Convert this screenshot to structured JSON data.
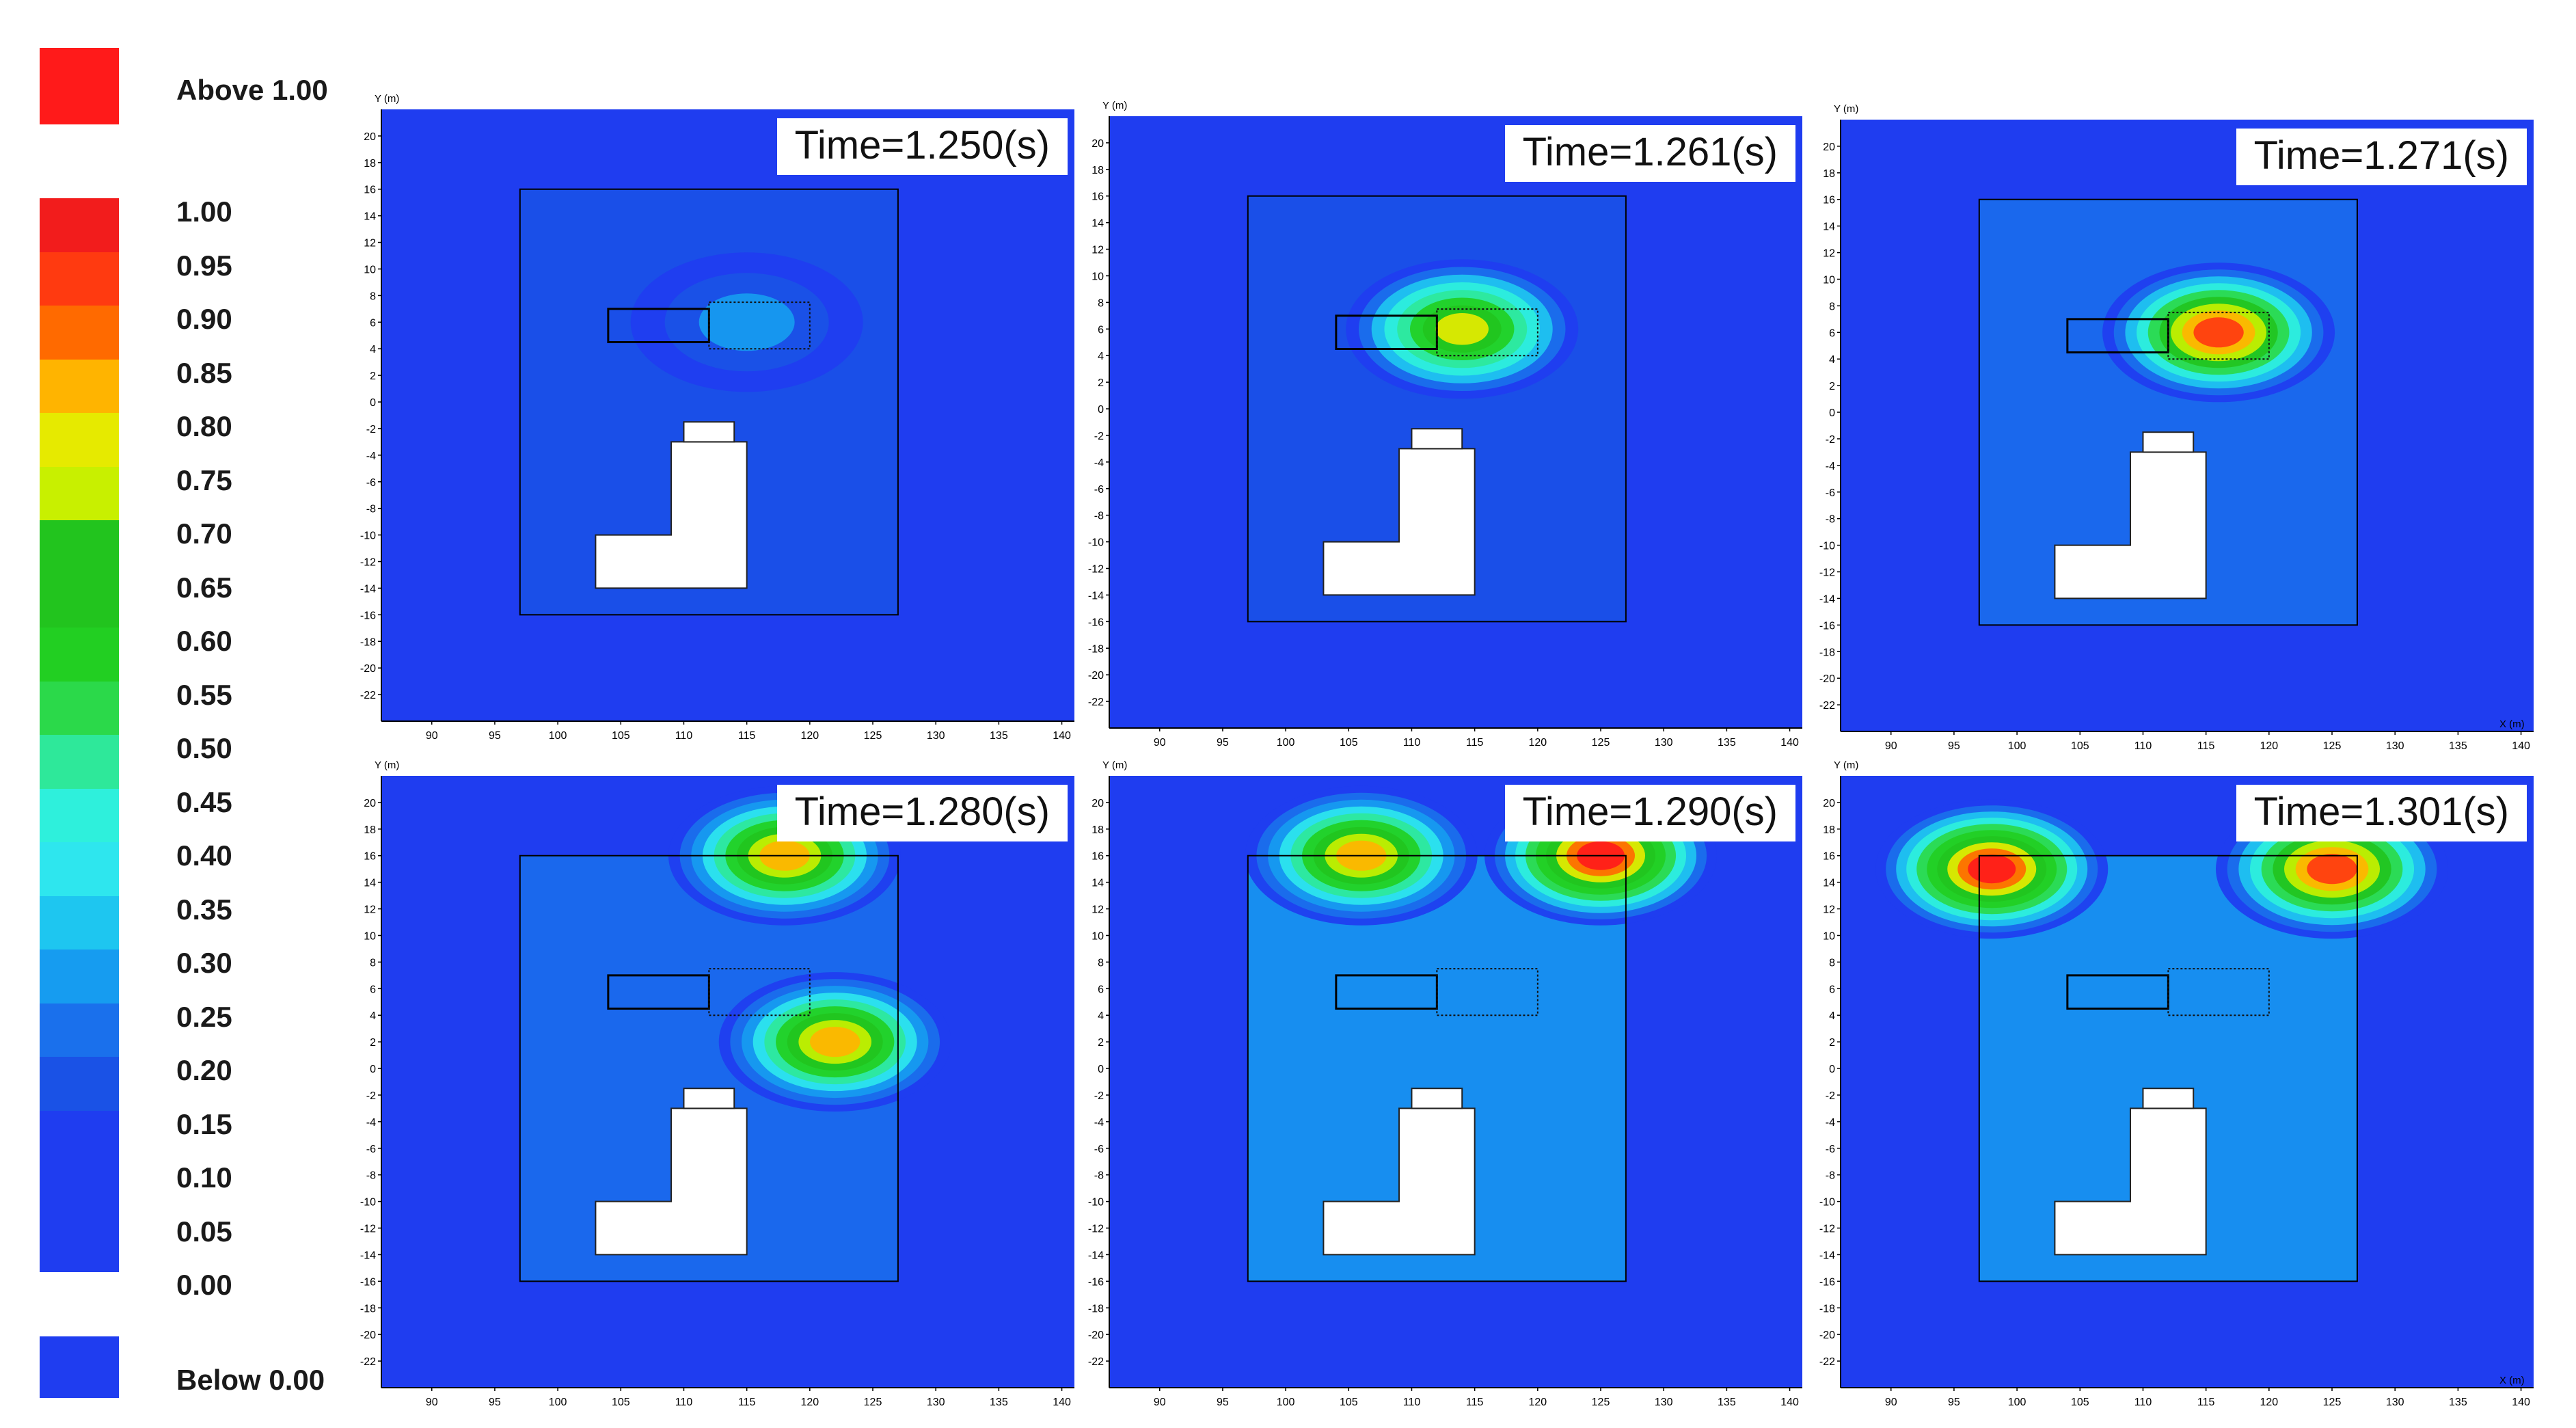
{
  "legend": {
    "above_label": "Above 1.00",
    "below_label": "Below 0.00",
    "above_color": "#ff1a1a",
    "below_color": "#1f3df0",
    "levels": [
      {
        "label": "1.00",
        "color": "#f21c1c"
      },
      {
        "label": "0.95",
        "color": "#ff3a10"
      },
      {
        "label": "0.90",
        "color": "#ff6a00"
      },
      {
        "label": "0.85",
        "color": "#ffb400"
      },
      {
        "label": "0.80",
        "color": "#e6ea00"
      },
      {
        "label": "0.75",
        "color": "#c8f000"
      },
      {
        "label": "0.70",
        "color": "#22c41e"
      },
      {
        "label": "0.65",
        "color": "#22c41e"
      },
      {
        "label": "0.60",
        "color": "#22cf22"
      },
      {
        "label": "0.55",
        "color": "#2bd94a"
      },
      {
        "label": "0.50",
        "color": "#2ee89a"
      },
      {
        "label": "0.45",
        "color": "#2ef0dc"
      },
      {
        "label": "0.40",
        "color": "#2ee6ee"
      },
      {
        "label": "0.35",
        "color": "#1ec6f0"
      },
      {
        "label": "0.30",
        "color": "#169cf0"
      },
      {
        "label": "0.25",
        "color": "#1a70ec"
      },
      {
        "label": "0.20",
        "color": "#1a52e6"
      },
      {
        "label": "0.15",
        "color": "#1f3df0"
      },
      {
        "label": "0.10",
        "color": "#1f3df0"
      },
      {
        "label": "0.05",
        "color": "#1f3df0"
      },
      {
        "label": "0.00",
        "color": "#1f3df0"
      }
    ]
  },
  "chart_data": [
    {
      "type": "heatmap",
      "title": "Time=1.250(s)",
      "xlabel": "X (m)",
      "ylabel": "Y (m)",
      "xlim": [
        86,
        141
      ],
      "ylim": [
        -24,
        22
      ],
      "x_ticks": [
        "90",
        "95",
        "100",
        "105",
        "110",
        "115",
        "120",
        "125",
        "130",
        "135",
        "140"
      ],
      "y_ticks": [
        "20",
        "18",
        "16",
        "14",
        "12",
        "10",
        "8",
        "6",
        "4",
        "2",
        "0",
        "-2",
        "-4",
        "-6",
        "-8",
        "-10",
        "-12",
        "-14",
        "-16",
        "-18",
        "-20",
        "-22"
      ],
      "hotspots": [
        {
          "x": 115,
          "y": 6,
          "level": 0.3
        }
      ]
    },
    {
      "type": "heatmap",
      "title": "Time=1.261(s)",
      "xlabel": "X (m)",
      "ylabel": "Y (m)",
      "xlim": [
        86,
        141
      ],
      "ylim": [
        -24,
        22
      ],
      "x_ticks": [
        "90",
        "95",
        "100",
        "105",
        "110",
        "115",
        "120",
        "125",
        "130",
        "135",
        "140"
      ],
      "y_ticks": [
        "20",
        "18",
        "16",
        "14",
        "12",
        "10",
        "8",
        "6",
        "4",
        "2",
        "0",
        "-2",
        "-4",
        "-6",
        "-8",
        "-10",
        "-12",
        "-14",
        "-16",
        "-18",
        "-20",
        "-22"
      ],
      "hotspots": [
        {
          "x": 114,
          "y": 6,
          "level": 0.8
        }
      ]
    },
    {
      "type": "heatmap",
      "title": "Time=1.271(s)",
      "xlabel": "X (m)",
      "ylabel": "Y (m)",
      "xlim": [
        86,
        141
      ],
      "ylim": [
        -24,
        22
      ],
      "x_ticks": [
        "90",
        "95",
        "100",
        "105",
        "110",
        "115",
        "120",
        "125",
        "130",
        "135",
        "140"
      ],
      "y_ticks": [
        "20",
        "18",
        "16",
        "14",
        "12",
        "10",
        "8",
        "6",
        "4",
        "2",
        "0",
        "-2",
        "-4",
        "-6",
        "-8",
        "-10",
        "-12",
        "-14",
        "-16",
        "-18",
        "-20",
        "-22"
      ],
      "hotspots": [
        {
          "x": 116,
          "y": 6,
          "level": 0.95
        }
      ]
    },
    {
      "type": "heatmap",
      "title": "Time=1.280(s)",
      "xlabel": "X (m)",
      "ylabel": "Y (m)",
      "xlim": [
        86,
        141
      ],
      "ylim": [
        -24,
        22
      ],
      "x_ticks": [
        "90",
        "95",
        "100",
        "105",
        "110",
        "115",
        "120",
        "125",
        "130",
        "135",
        "140"
      ],
      "y_ticks": [
        "20",
        "18",
        "16",
        "14",
        "12",
        "10",
        "8",
        "6",
        "4",
        "2",
        "0",
        "-2",
        "-4",
        "-6",
        "-8",
        "-10",
        "-12",
        "-14",
        "-16",
        "-18",
        "-20",
        "-22"
      ],
      "hotspots": [
        {
          "x": 118,
          "y": 16,
          "level": 0.85
        },
        {
          "x": 122,
          "y": 2,
          "level": 0.85
        }
      ]
    },
    {
      "type": "heatmap",
      "title": "Time=1.290(s)",
      "xlabel": "X (m)",
      "ylabel": "Y (m)",
      "xlim": [
        86,
        141
      ],
      "ylim": [
        -24,
        22
      ],
      "x_ticks": [
        "90",
        "95",
        "100",
        "105",
        "110",
        "115",
        "120",
        "125",
        "130",
        "135",
        "140"
      ],
      "y_ticks": [
        "20",
        "18",
        "16",
        "14",
        "12",
        "10",
        "8",
        "6",
        "4",
        "2",
        "0",
        "-2",
        "-4",
        "-6",
        "-8",
        "-10",
        "-12",
        "-14",
        "-16",
        "-18",
        "-20",
        "-22"
      ],
      "hotspots": [
        {
          "x": 125,
          "y": 16,
          "level": 1.0
        },
        {
          "x": 106,
          "y": 16,
          "level": 0.85
        }
      ]
    },
    {
      "type": "heatmap",
      "title": "Time=1.301(s)",
      "xlabel": "X (m)",
      "ylabel": "Y (m)",
      "xlim": [
        86,
        141
      ],
      "ylim": [
        -24,
        22
      ],
      "x_ticks": [
        "90",
        "95",
        "100",
        "105",
        "110",
        "115",
        "120",
        "125",
        "130",
        "135",
        "140"
      ],
      "y_ticks": [
        "20",
        "18",
        "16",
        "14",
        "12",
        "10",
        "8",
        "6",
        "4",
        "2",
        "0",
        "-2",
        "-4",
        "-6",
        "-8",
        "-10",
        "-12",
        "-14",
        "-16",
        "-18",
        "-20",
        "-22"
      ],
      "hotspots": [
        {
          "x": 98,
          "y": 15,
          "level": 1.0
        },
        {
          "x": 125,
          "y": 15,
          "level": 0.95
        }
      ]
    }
  ]
}
